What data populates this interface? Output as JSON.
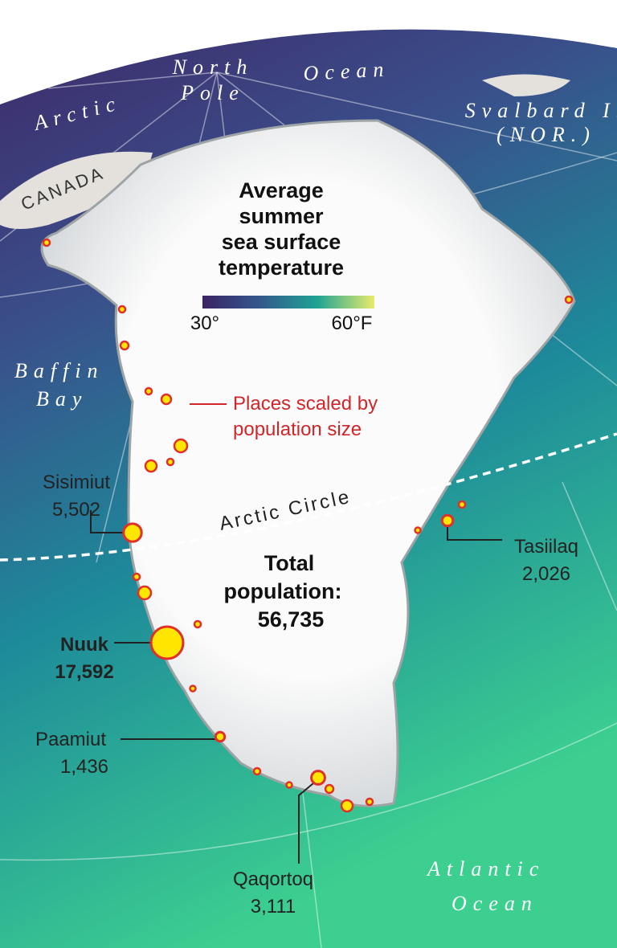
{
  "title_lines": [
    "Average",
    "summer",
    "sea surface",
    "temperature"
  ],
  "legend": {
    "min_label": "30°",
    "max_label": "60°F",
    "colors": [
      "#3a2466",
      "#34588c",
      "#1fa394",
      "#e6ec6a"
    ]
  },
  "annotation_lines": [
    "Places scaled by",
    "population size"
  ],
  "total": {
    "lines": [
      "Total",
      "population:"
    ],
    "value": "56,735"
  },
  "geo_labels": {
    "arctic": "Arctic",
    "ocean_north": "Ocean",
    "north_pole": [
      "North",
      "Pole"
    ],
    "svalbard": [
      "Svalbard I.",
      "(NOR.)"
    ],
    "canada": "CANADA",
    "baffin": [
      "Baffin",
      "Bay"
    ],
    "arctic_circle": "Arctic Circle",
    "atlantic": [
      "Atlantic",
      "Ocean"
    ]
  },
  "places": [
    {
      "name": "Sisimiut",
      "population": 5502,
      "label": "5,502"
    },
    {
      "name": "Tasiilaq",
      "population": 2026,
      "label": "2,026"
    },
    {
      "name": "Nuuk",
      "population": 17592,
      "label": "17,592"
    },
    {
      "name": "Paamiut",
      "population": 1436,
      "label": "1,436"
    },
    {
      "name": "Qaqortoq",
      "population": 3111,
      "label": "3,111"
    }
  ],
  "marker_color": "#ffe600"
}
